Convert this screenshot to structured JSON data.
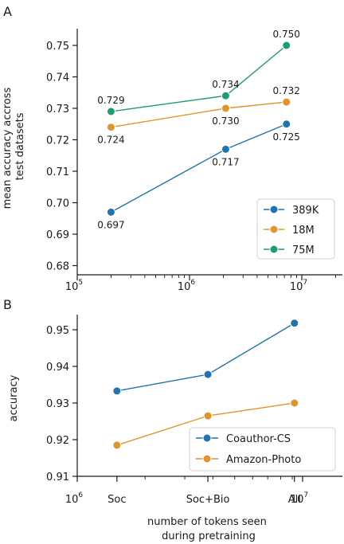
{
  "chart_data": [
    {
      "panel_label": "A",
      "type": "line",
      "x_scale": "log",
      "xlim": [
        100000,
        20000000
      ],
      "x_ticks": [
        {
          "value": 100000,
          "base": "10",
          "exp": "5"
        },
        {
          "value": 1000000,
          "base": "10",
          "exp": "6"
        },
        {
          "value": 10000000,
          "base": "10",
          "exp": "7"
        }
      ],
      "ylabel_lines": [
        "mean accuracy accross",
        "test datasets"
      ],
      "ylim": [
        0.68,
        0.755
      ],
      "y_ticks": [
        "0.68",
        "0.69",
        "0.70",
        "0.71",
        "0.72",
        "0.73",
        "0.74",
        "0.75"
      ],
      "legend_position": "bottom-right",
      "series": [
        {
          "name": "389K",
          "color": "#1f74b0",
          "points": [
            {
              "x": 200000,
              "y": 0.697,
              "label": "0.697",
              "label_pos": "below"
            },
            {
              "x": 2100000,
              "y": 0.717,
              "label": "0.717",
              "label_pos": "below"
            },
            {
              "x": 7300000,
              "y": 0.725,
              "label": "0.725",
              "label_pos": "below"
            }
          ]
        },
        {
          "name": "18M",
          "color": "#e0952b",
          "points": [
            {
              "x": 200000,
              "y": 0.724,
              "label": "0.724",
              "label_pos": "below"
            },
            {
              "x": 2100000,
              "y": 0.73,
              "label": "0.730",
              "label_pos": "below"
            },
            {
              "x": 7300000,
              "y": 0.732,
              "label": "0.732",
              "label_pos": "above"
            }
          ]
        },
        {
          "name": "75M",
          "color": "#1f9a77",
          "points": [
            {
              "x": 200000,
              "y": 0.729,
              "label": "0.729",
              "label_pos": "above"
            },
            {
              "x": 2100000,
              "y": 0.734,
              "label": "0.734",
              "label_pos": "above"
            },
            {
              "x": 7300000,
              "y": 0.75,
              "label": "0.750",
              "label_pos": "above"
            }
          ]
        }
      ]
    },
    {
      "panel_label": "B",
      "type": "line",
      "x_scale": "log",
      "xlim": [
        1000000,
        15000000
      ],
      "x_ticks": [
        {
          "value": 1000000,
          "base": "10",
          "exp": "6"
        },
        {
          "value": 10000000,
          "base": "10",
          "exp": "7"
        }
      ],
      "x_categories": [
        {
          "value": 1500000,
          "label": "Soc"
        },
        {
          "value": 3800000,
          "label": "Soc+Bio"
        },
        {
          "value": 9200000,
          "label": "All"
        }
      ],
      "xlabel_lines": [
        "number of tokens seen",
        "during pretraining"
      ],
      "ylabel": "accuracy",
      "ylim": [
        0.91,
        0.957
      ],
      "y_ticks": [
        "0.91",
        "0.92",
        "0.93",
        "0.94",
        "0.95"
      ],
      "legend_position": "bottom-right",
      "series": [
        {
          "name": "Coauthor-CS",
          "color": "#1f74b0",
          "points": [
            {
              "x": 1500000,
              "y": 0.9333
            },
            {
              "x": 3800000,
              "y": 0.9378
            },
            {
              "x": 9200000,
              "y": 0.9518
            }
          ]
        },
        {
          "name": "Amazon-Photo",
          "color": "#e0952b",
          "points": [
            {
              "x": 1500000,
              "y": 0.9185
            },
            {
              "x": 3800000,
              "y": 0.9265
            },
            {
              "x": 9200000,
              "y": 0.93
            }
          ]
        }
      ]
    }
  ]
}
